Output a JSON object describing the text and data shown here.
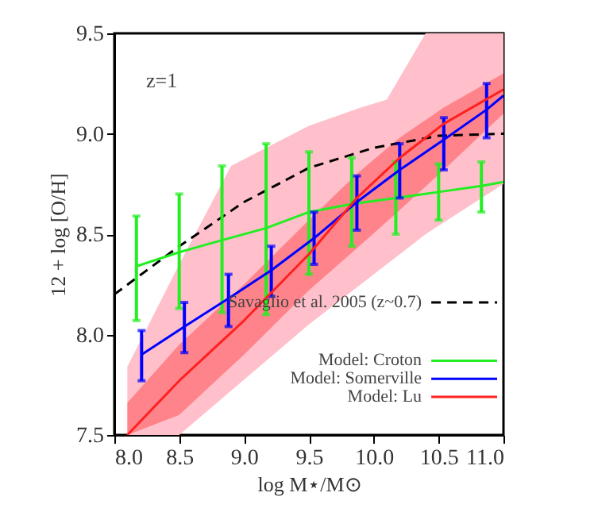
{
  "chart_data": {
    "type": "line",
    "xlabel": "log M⋆/M⊙",
    "ylabel": "12 + log [O/H]",
    "xlim": [
      8.0,
      11.0
    ],
    "ylim": [
      7.5,
      9.5
    ],
    "xticks": [
      {
        "value": 8.0,
        "label": "8.0"
      },
      8.5,
      {
        "value": 9.0,
        "label": "9.0"
      },
      9.5,
      {
        "value": 10.0,
        "label": "10.0"
      },
      10.5,
      {
        "value": 11.0,
        "label": "11.0"
      }
    ],
    "yticks": [
      7.5,
      {
        "value": 8.0,
        "label": "8.0"
      },
      8.5,
      {
        "value": 9.0,
        "label": "9.0"
      },
      9.5
    ],
    "annotations": [
      "z=1"
    ],
    "legend": "bottom right",
    "grid": false,
    "series": [
      {
        "type": "line",
        "color": "#ffc0cb",
        "x": [
          8.1,
          8.5,
          8.9,
          9.5,
          9.9,
          10.1,
          10.4,
          11.0
        ],
        "values": [
          null,
          null,
          null,
          null,
          null,
          null,
          null,
          null
        ],
        "upper": [
          7.84,
          8.35,
          8.84,
          9.04,
          9.13,
          9.17,
          9.5,
          9.5
        ],
        "lower": [
          7.5,
          7.5,
          7.72,
          8.05,
          8.25,
          8.35,
          8.5,
          8.75
        ]
      },
      {
        "name": "Savaglio et al. 2005 (z~0.7)",
        "type": "line",
        "line_style": "dashed",
        "color": "#000000",
        "x": [
          8.0,
          8.5,
          9.0,
          9.5,
          10.0,
          10.5,
          11.0
        ],
        "values": [
          8.2,
          8.44,
          8.66,
          8.83,
          8.93,
          8.99,
          9.0
        ]
      },
      {
        "name": "Model: Croton",
        "type": "line",
        "line_style": "solid",
        "color": "#22ee22",
        "x": [
          8.17,
          8.5,
          8.83,
          9.17,
          9.5,
          9.83,
          10.17,
          10.5,
          10.83,
          11.0
        ],
        "values": [
          8.34,
          8.41,
          8.47,
          8.53,
          8.61,
          8.65,
          8.68,
          8.71,
          8.74,
          8.76
        ],
        "errors": [
          [
            8.07,
            8.59
          ],
          [
            8.13,
            8.7
          ],
          [
            8.11,
            8.84
          ],
          [
            8.1,
            8.95
          ],
          [
            8.3,
            8.91
          ],
          [
            8.44,
            8.88
          ],
          [
            8.5,
            8.86
          ],
          [
            8.57,
            8.85
          ],
          [
            8.61,
            8.86
          ],
          null
        ]
      },
      {
        "name": "Model: Somerville",
        "type": "line",
        "line_style": "solid",
        "color": "#0000ff",
        "x": [
          8.21,
          8.54,
          8.88,
          9.21,
          9.54,
          9.87,
          10.2,
          10.54,
          10.87,
          11.0
        ],
        "values": [
          7.9,
          8.04,
          8.18,
          8.32,
          8.48,
          8.66,
          8.82,
          8.97,
          9.12,
          9.19
        ],
        "errors": [
          [
            7.77,
            8.02
          ],
          [
            7.91,
            8.16
          ],
          [
            8.04,
            8.3
          ],
          [
            8.19,
            8.44
          ],
          [
            8.35,
            8.61
          ],
          [
            8.52,
            8.79
          ],
          [
            8.68,
            8.95
          ],
          [
            8.82,
            9.08
          ],
          [
            8.98,
            9.25
          ],
          null
        ]
      },
      {
        "name": "Model: Lu",
        "line_style": "solid",
        "color": "#ff2020",
        "x": [
          8.1,
          8.5,
          9.0,
          9.5,
          9.87,
          10.2,
          10.54,
          11.0
        ],
        "values": [
          7.5,
          7.77,
          8.07,
          8.4,
          8.68,
          8.88,
          9.05,
          9.22
        ],
        "lower": [
          7.5,
          7.6,
          7.9,
          8.22,
          8.43,
          8.62,
          8.82,
          9.1
        ],
        "upper": [
          7.66,
          7.95,
          8.25,
          8.57,
          8.8,
          8.98,
          9.13,
          9.3
        ]
      }
    ]
  }
}
